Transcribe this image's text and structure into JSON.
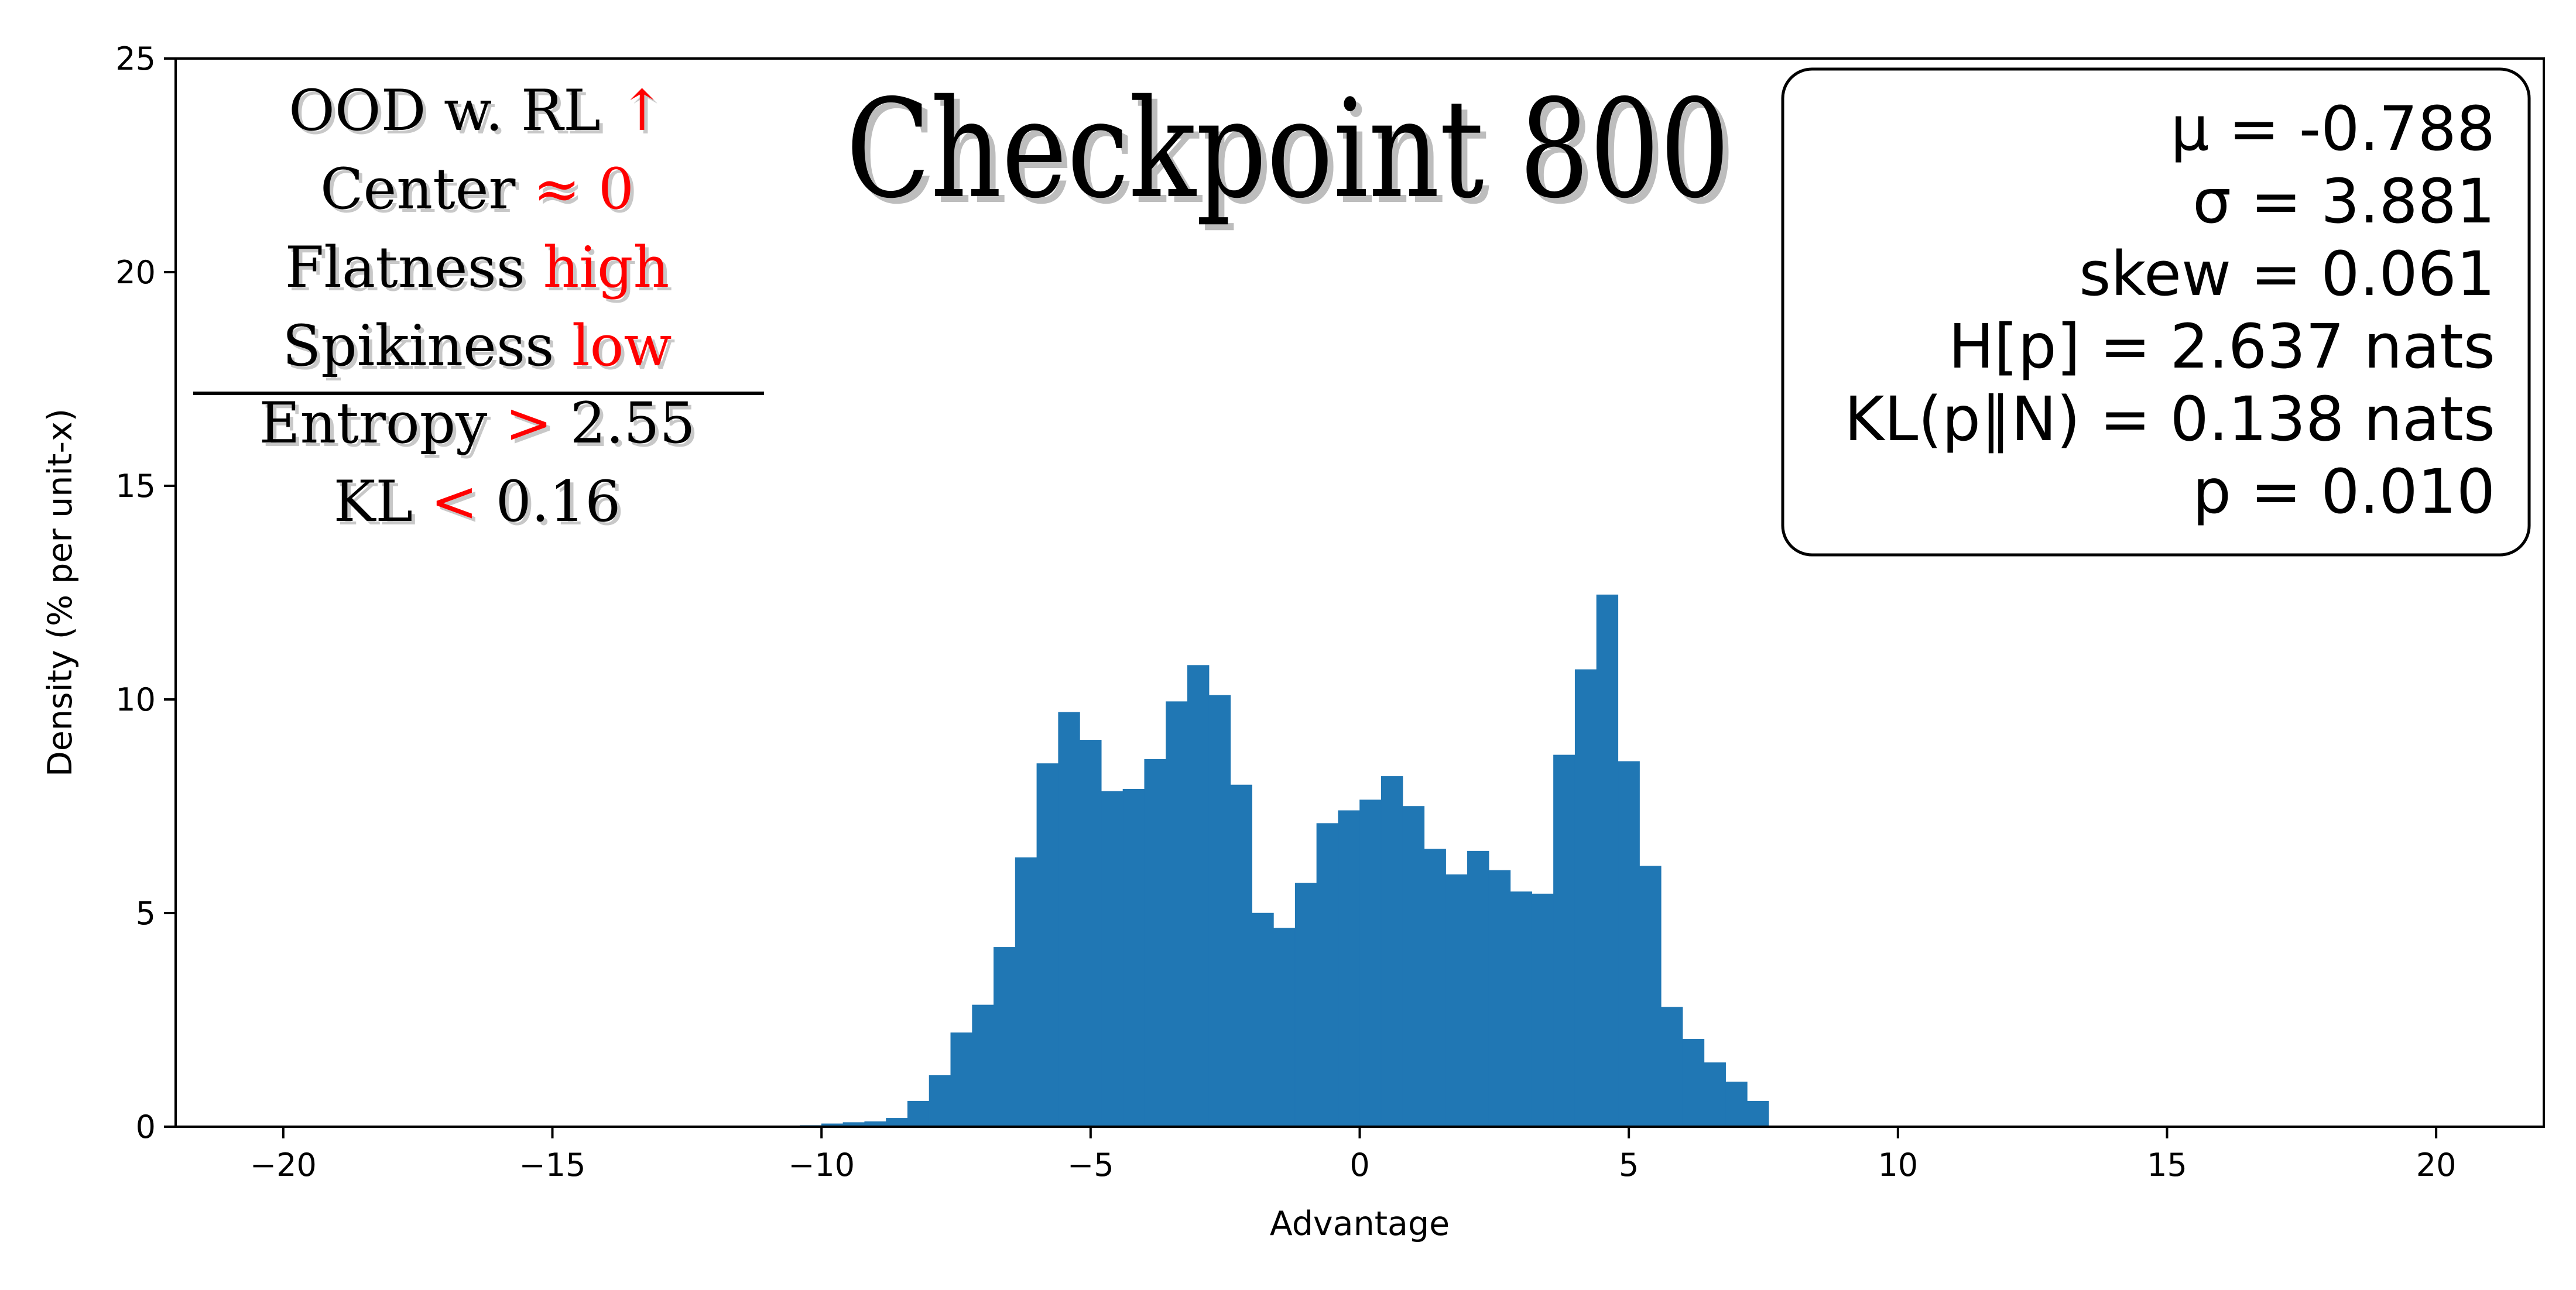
{
  "chart_data": {
    "type": "bar",
    "title": "Checkpoint 800",
    "xlabel": "Advantage",
    "ylabel": "Density (% per unit-x)",
    "xlim": [
      -22,
      22
    ],
    "ylim": [
      0,
      25
    ],
    "xticks": [
      -20,
      -15,
      -10,
      -5,
      0,
      5,
      10,
      15,
      20
    ],
    "xtick_labels": [
      "−20",
      "−15",
      "−10",
      "−5",
      "0",
      "5",
      "10",
      "15",
      "20"
    ],
    "yticks": [
      0,
      5,
      10,
      15,
      20,
      25
    ],
    "ytick_labels": [
      "0",
      "5",
      "10",
      "15",
      "20",
      "25"
    ],
    "bin_width": 0.4,
    "bins": [
      {
        "x0": -10.4,
        "x1": -10.0,
        "value": 0.03
      },
      {
        "x0": -10.0,
        "x1": -9.6,
        "value": 0.07
      },
      {
        "x0": -9.6,
        "x1": -9.2,
        "value": 0.1
      },
      {
        "x0": -9.2,
        "x1": -8.8,
        "value": 0.12
      },
      {
        "x0": -8.8,
        "x1": -8.4,
        "value": 0.2
      },
      {
        "x0": -8.4,
        "x1": -8.0,
        "value": 0.6
      },
      {
        "x0": -8.0,
        "x1": -7.6,
        "value": 1.2
      },
      {
        "x0": -7.6,
        "x1": -7.2,
        "value": 2.2
      },
      {
        "x0": -7.2,
        "x1": -6.8,
        "value": 2.85
      },
      {
        "x0": -6.8,
        "x1": -6.4,
        "value": 4.2
      },
      {
        "x0": -6.4,
        "x1": -6.0,
        "value": 6.3
      },
      {
        "x0": -6.0,
        "x1": -5.6,
        "value": 8.5
      },
      {
        "x0": -5.6,
        "x1": -5.2,
        "value": 9.7
      },
      {
        "x0": -5.2,
        "x1": -4.8,
        "value": 9.05
      },
      {
        "x0": -4.8,
        "x1": -4.4,
        "value": 7.85
      },
      {
        "x0": -4.4,
        "x1": -4.0,
        "value": 7.9
      },
      {
        "x0": -4.0,
        "x1": -3.6,
        "value": 8.6
      },
      {
        "x0": -3.6,
        "x1": -3.2,
        "value": 9.95
      },
      {
        "x0": -3.2,
        "x1": -2.8,
        "value": 10.8
      },
      {
        "x0": -2.8,
        "x1": -2.4,
        "value": 10.1
      },
      {
        "x0": -2.4,
        "x1": -2.0,
        "value": 8.0
      },
      {
        "x0": -2.0,
        "x1": -1.6,
        "value": 5.0
      },
      {
        "x0": -1.6,
        "x1": -1.2,
        "value": 4.65
      },
      {
        "x0": -1.2,
        "x1": -0.8,
        "value": 5.7
      },
      {
        "x0": -0.8,
        "x1": -0.4,
        "value": 7.1
      },
      {
        "x0": -0.4,
        "x1": 0.0,
        "value": 7.4
      },
      {
        "x0": 0.0,
        "x1": 0.4,
        "value": 7.65
      },
      {
        "x0": 0.4,
        "x1": 0.8,
        "value": 8.2
      },
      {
        "x0": 0.8,
        "x1": 1.2,
        "value": 7.5
      },
      {
        "x0": 1.2,
        "x1": 1.6,
        "value": 6.5
      },
      {
        "x0": 1.6,
        "x1": 2.0,
        "value": 5.9
      },
      {
        "x0": 2.0,
        "x1": 2.4,
        "value": 6.45
      },
      {
        "x0": 2.4,
        "x1": 2.8,
        "value": 6.0
      },
      {
        "x0": 2.8,
        "x1": 3.2,
        "value": 5.5
      },
      {
        "x0": 3.2,
        "x1": 3.6,
        "value": 5.45
      },
      {
        "x0": 3.6,
        "x1": 4.0,
        "value": 8.7
      },
      {
        "x0": 4.0,
        "x1": 4.4,
        "value": 10.7
      },
      {
        "x0": 4.4,
        "x1": 4.8,
        "value": 12.45
      },
      {
        "x0": 4.8,
        "x1": 5.2,
        "value": 8.55
      },
      {
        "x0": 5.2,
        "x1": 5.6,
        "value": 6.1
      },
      {
        "x0": 5.6,
        "x1": 6.0,
        "value": 2.8
      },
      {
        "x0": 6.0,
        "x1": 6.4,
        "value": 2.05
      },
      {
        "x0": 6.4,
        "x1": 6.8,
        "value": 1.5
      },
      {
        "x0": 6.8,
        "x1": 7.2,
        "value": 1.05
      },
      {
        "x0": 7.2,
        "x1": 7.6,
        "value": 0.6
      }
    ],
    "bar_color": "#2077b4",
    "grid": false,
    "annotations": {
      "left_notes": {
        "placement": "top-left",
        "lines": [
          {
            "name": "ood",
            "parts": [
              {
                "text": "OOD w. RL ",
                "color": "black"
              },
              {
                "text": "↑",
                "color": "red"
              }
            ]
          },
          {
            "name": "center",
            "parts": [
              {
                "text": "Center ",
                "color": "black"
              },
              {
                "text": "≈ 0",
                "color": "red"
              }
            ]
          },
          {
            "name": "flatness",
            "parts": [
              {
                "text": "Flatness ",
                "color": "black"
              },
              {
                "text": "high",
                "color": "red"
              }
            ]
          },
          {
            "name": "spikiness",
            "parts": [
              {
                "text": "Spikiness ",
                "color": "black"
              },
              {
                "text": "low",
                "color": "red"
              }
            ]
          },
          {
            "name": "entropy",
            "parts": [
              {
                "text": "Entropy ",
                "color": "black"
              },
              {
                "text": ">",
                "color": "red"
              },
              {
                "text": " 2.55",
                "color": "black"
              }
            ]
          },
          {
            "name": "kl",
            "parts": [
              {
                "text": "KL ",
                "color": "black"
              },
              {
                "text": "<",
                "color": "red"
              },
              {
                "text": " 0.16",
                "color": "black"
              }
            ]
          }
        ]
      },
      "stats_box": {
        "placement": "top-right",
        "lines": [
          "μ = -0.788",
          "σ = 3.881",
          "skew = 0.061",
          "H[p] = 2.637 nats",
          "KL(p∥N) = 0.138 nats",
          "p = 0.010"
        ]
      }
    }
  },
  "colors": {
    "bar": "#2077b4",
    "accent": "#ff0000",
    "axis": "#000000"
  }
}
